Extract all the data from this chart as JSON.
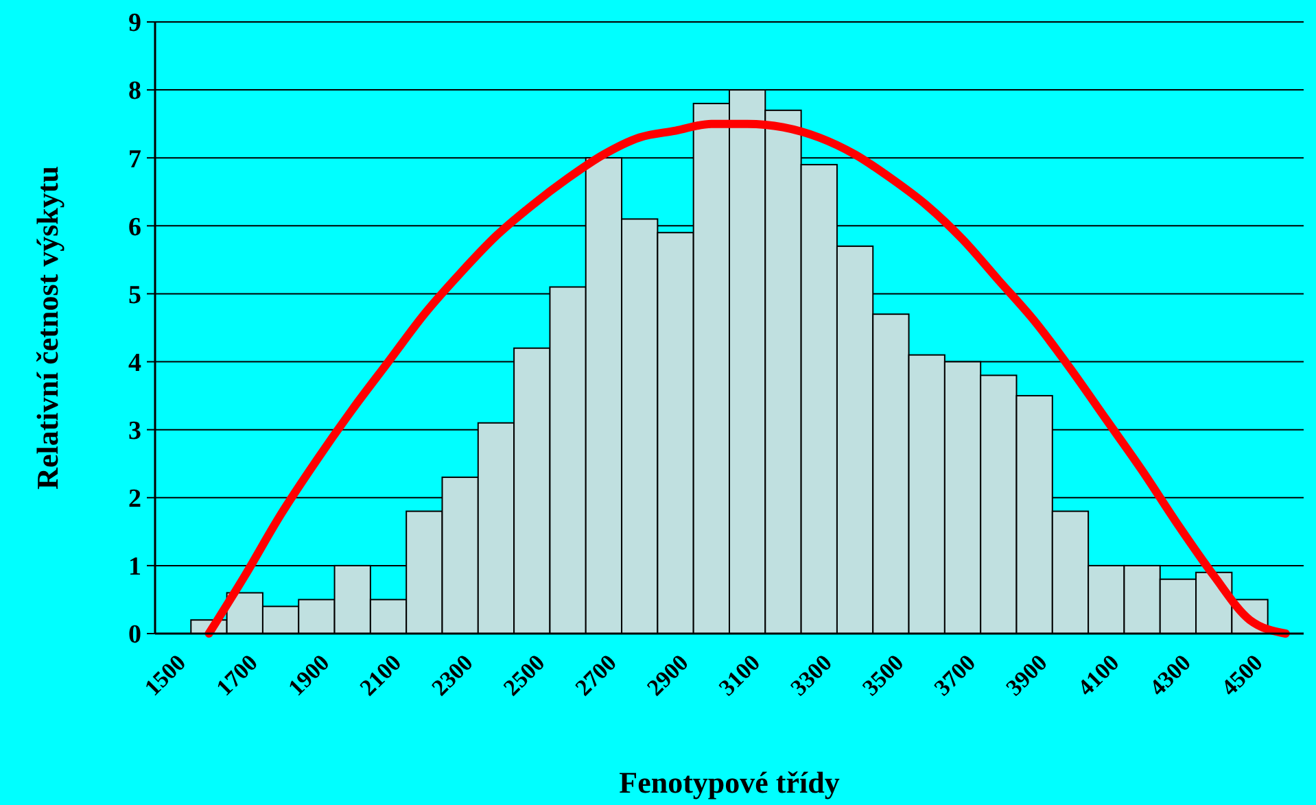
{
  "chart_data": {
    "type": "bar",
    "xlabel": "Fenotypové třídy",
    "ylabel": "Relativní četnost výskytu",
    "categories": [
      "1500",
      null,
      "1700",
      null,
      "1900",
      null,
      "2100",
      null,
      "2300",
      null,
      "2500",
      null,
      "2700",
      null,
      "2900",
      null,
      "3100",
      null,
      "3300",
      null,
      "3500",
      null,
      "3700",
      null,
      "3900",
      null,
      "4100",
      null,
      "4300",
      null,
      "4500",
      null
    ],
    "series": [
      {
        "color": "#c0e0e0",
        "values": [
          null,
          0.2,
          0.6,
          0.4,
          0.5,
          1.0,
          0.5,
          1.8,
          2.3,
          3.1,
          4.2,
          5.1,
          7.0,
          6.1,
          5.9,
          7.8,
          8.0,
          7.7,
          6.9,
          5.7,
          4.7,
          4.1,
          4.0,
          3.8,
          3.5,
          1.8,
          1.0,
          1.0,
          0.8,
          0.9,
          0.5,
          null
        ]
      },
      {
        "type": "line",
        "color": "#ff0000",
        "values": [
          null,
          0,
          0.85,
          1.75,
          2.55,
          3.3,
          4.0,
          4.7,
          5.3,
          5.85,
          6.3,
          6.7,
          7.05,
          7.3,
          7.4,
          7.5,
          7.5,
          7.45,
          7.3,
          7.05,
          6.7,
          6.3,
          5.8,
          5.2,
          4.6,
          3.9,
          3.15,
          2.4,
          1.6,
          0.85,
          0.2,
          0
        ]
      }
    ],
    "ylim": [
      0,
      9
    ],
    "yticks": [
      0,
      1,
      2,
      3,
      4,
      5,
      6,
      7,
      8,
      9
    ],
    "grid": "y"
  }
}
